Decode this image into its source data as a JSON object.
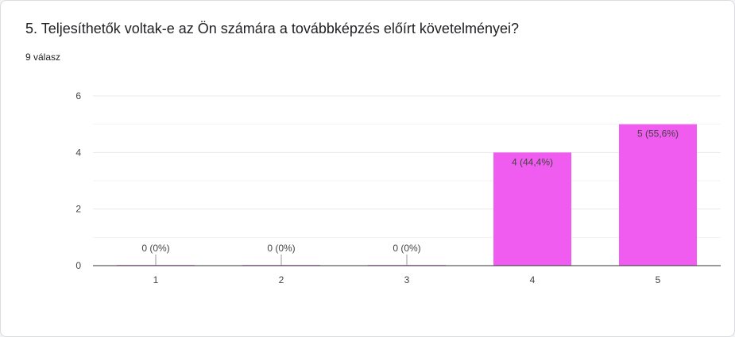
{
  "question": {
    "title": "5. Teljesíthetők voltak-e az Ön számára a továbbképzés előírt követelményei?",
    "response_count": "9 válasz"
  },
  "colors": {
    "bar": "#f05bf0",
    "grid": "#e8e8e8",
    "axis": "#333333",
    "text": "#444444"
  },
  "chart_data": {
    "type": "bar",
    "title": "",
    "xlabel": "",
    "ylabel": "",
    "categories": [
      "1",
      "2",
      "3",
      "4",
      "5"
    ],
    "values": [
      0,
      0,
      0,
      4,
      5
    ],
    "data_labels": [
      "0 (0%)",
      "0 (0%)",
      "0 (0%)",
      "4 (44,4%)",
      "5 (55,6%)"
    ],
    "ylim": [
      0,
      6
    ],
    "y_ticks": [
      0,
      2,
      4,
      6
    ],
    "grid": true,
    "minor_grid": true
  }
}
